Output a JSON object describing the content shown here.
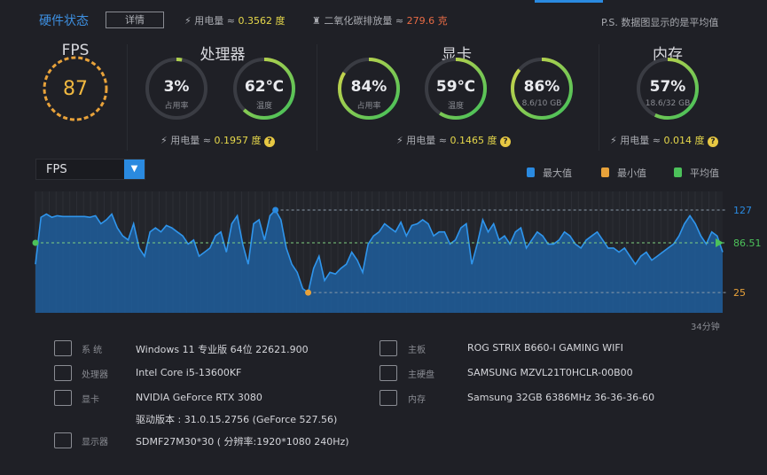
{
  "header": {
    "title": "硬件状态",
    "details_button": "详情",
    "power_label": "用电量 ≈ ",
    "power_value": "0.3562 度",
    "co2_label": "二氧化碳排放量 ≈ ",
    "co2_value": "279.6 克",
    "note": "P.S. 数据图显示的是平均值"
  },
  "fps": {
    "label": "FPS",
    "value": "87"
  },
  "cpu": {
    "title": "处理器",
    "usage": {
      "value": "3%",
      "sub": "占用率",
      "fraction": 0.03
    },
    "temp": {
      "value": "62℃",
      "sub": "温度",
      "fraction": 0.62
    },
    "power_label": "用电量 ≈ ",
    "power_value": "0.1957 度"
  },
  "gpu": {
    "title": "显卡",
    "usage": {
      "value": "84%",
      "sub": "占用率",
      "fraction": 0.84
    },
    "temp": {
      "value": "59℃",
      "sub": "温度",
      "fraction": 0.59
    },
    "vram": {
      "value": "86%",
      "sub": "8.6/10 GB",
      "fraction": 0.86
    },
    "power_label": "用电量 ≈ ",
    "power_value": "0.1465 度"
  },
  "memory": {
    "title": "内存",
    "usage": {
      "value": "57%",
      "sub": "18.6/32 GB",
      "fraction": 0.57
    },
    "power_label": "用电量 ≈ ",
    "power_value": "0.014 度"
  },
  "colors": {
    "accent": "#2a8ae0",
    "max": "#2a8ae0",
    "min": "#e8a23a",
    "avg": "#4cc15a",
    "power": "#e7d94b",
    "co2": "#e86b45"
  },
  "chart": {
    "selector": "FPS",
    "legend": [
      "最大值",
      "最小值",
      "平均值"
    ],
    "x_end_label": "34分钟"
  },
  "chart_data": {
    "type": "area",
    "ylim": [
      0,
      150
    ],
    "max": 127,
    "min": 25,
    "avg": 86.51,
    "max_label": "127",
    "min_label": "25",
    "avg_label": "86.51",
    "duration": "34分钟",
    "values": [
      60,
      118,
      122,
      118,
      120,
      119,
      119,
      119,
      119,
      119,
      118,
      120,
      110,
      115,
      122,
      105,
      95,
      90,
      110,
      80,
      70,
      100,
      105,
      100,
      108,
      105,
      100,
      95,
      85,
      90,
      70,
      75,
      80,
      95,
      100,
      75,
      110,
      120,
      85,
      60,
      110,
      115,
      90,
      120,
      127,
      115,
      80,
      60,
      50,
      30,
      25,
      55,
      70,
      40,
      50,
      48,
      55,
      60,
      75,
      65,
      50,
      85,
      95,
      100,
      110,
      105,
      100,
      112,
      95,
      108,
      110,
      115,
      110,
      95,
      100,
      100,
      85,
      90,
      105,
      110,
      60,
      85,
      115,
      100,
      110,
      90,
      95,
      85,
      100,
      105,
      80,
      90,
      100,
      95,
      85,
      85,
      90,
      100,
      95,
      85,
      80,
      90,
      95,
      100,
      90,
      80,
      80,
      75,
      80,
      70,
      60,
      70,
      75,
      65,
      70,
      75,
      80,
      85,
      95,
      110,
      120,
      110,
      95,
      85,
      100,
      95,
      75
    ]
  },
  "system": {
    "left": [
      {
        "label": "系 统",
        "value": "Windows 11 专业版 64位 22621.900",
        "icon": "windows-icon"
      },
      {
        "label": "处理器",
        "value": "Intel Core i5-13600KF",
        "icon": "cpu-icon"
      },
      {
        "label": "显卡",
        "value": "NVIDIA GeForce RTX 3080",
        "icon": "gpu-icon"
      },
      {
        "label": "",
        "value": "驱动版本 : 31.0.15.2756 (GeForce 527.56)"
      },
      {
        "label": "显示器",
        "value": "SDMF27M30*30 ( 分辨率:1920*1080 240Hz)",
        "icon": "monitor-icon"
      }
    ],
    "right": [
      {
        "label": "主板",
        "value": "ROG STRIX B660-I GAMING WIFI",
        "icon": "motherboard-icon"
      },
      {
        "label": "主硬盘",
        "value": "SAMSUNG MZVL21T0HCLR-00B00",
        "icon": "disk-icon"
      },
      {
        "label": "内存",
        "value": "Samsung 32GB 6386MHz 36-36-36-60",
        "icon": "memory-icon"
      }
    ]
  }
}
